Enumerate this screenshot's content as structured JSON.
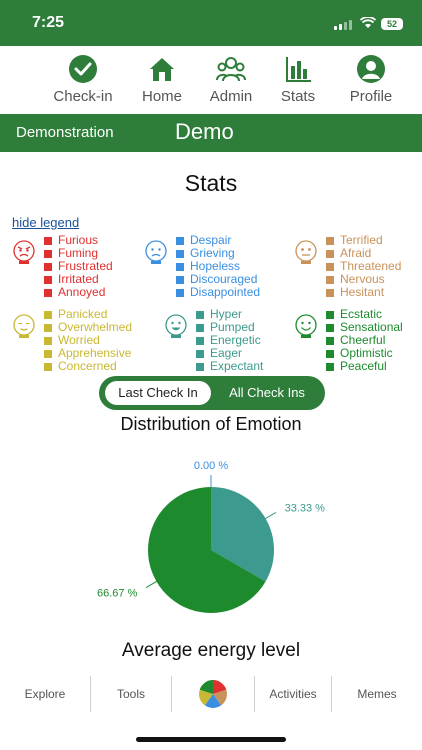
{
  "status_bar": {
    "time": "7:25",
    "battery": "52"
  },
  "nav": {
    "items": [
      {
        "label": "Check-in",
        "icon": "check-circle-icon"
      },
      {
        "label": "Home",
        "icon": "home-icon"
      },
      {
        "label": "Admin",
        "icon": "admin-group-icon"
      },
      {
        "label": "Stats",
        "icon": "bar-chart-icon"
      },
      {
        "label": "Profile",
        "icon": "profile-icon"
      }
    ]
  },
  "header": {
    "left_label": "Demonstration",
    "center_label": "Demo"
  },
  "page_title": "Stats",
  "legend": {
    "toggle_label": "hide legend",
    "groups": [
      {
        "face_label": "ANGRY",
        "color": "#e03131",
        "items": [
          "Furious",
          "Fuming",
          "Frustrated",
          "Irritated",
          "Annoyed"
        ]
      },
      {
        "face_label": "SAD",
        "color": "#3b8fe0",
        "items": [
          "Despair",
          "Grieving",
          "Hopeless",
          "Discouraged",
          "Disappointed"
        ]
      },
      {
        "face_label": "SCARED",
        "color": "#c9925a",
        "items": [
          "Terrified",
          "Afraid",
          "Threatened",
          "Nervous",
          "Hesitant"
        ]
      },
      {
        "face_label": "CALM",
        "color": "#c9b831",
        "items": [
          "Panicked",
          "Overwhelmed",
          "Worried",
          "Apprehensive",
          "Concerned"
        ]
      },
      {
        "face_label": "EXCITED",
        "color": "#3d9a8e",
        "items": [
          "Hyper",
          "Pumped",
          "Energetic",
          "Eager",
          "Expectant"
        ]
      },
      {
        "face_label": "HAPPY",
        "color": "#1e8a2e",
        "items": [
          "Ecstatic",
          "Sensational",
          "Cheerful",
          "Optimistic",
          "Peaceful"
        ]
      }
    ]
  },
  "toggle": {
    "active": "Last Check In",
    "inactive": "All Check Ins"
  },
  "distribution_title": "Distribution of Emotion",
  "chart_data": {
    "type": "pie",
    "title": "Distribution of Emotion",
    "slices": [
      {
        "label": "0.00 %",
        "value": 0.0,
        "color": "#3b8fe0"
      },
      {
        "label": "33.33 %",
        "value": 33.33,
        "color": "#3d9a8e"
      },
      {
        "label": "66.67 %",
        "value": 66.67,
        "color": "#1e8a2e"
      }
    ]
  },
  "energy_title": "Average energy level",
  "bottom_bar": {
    "items": [
      "Explore",
      "Tools",
      "",
      "Activities",
      "Memes"
    ],
    "center_icon": "emotion-pie-icon"
  },
  "colors": {
    "brand_green": "#2e7d3a"
  }
}
